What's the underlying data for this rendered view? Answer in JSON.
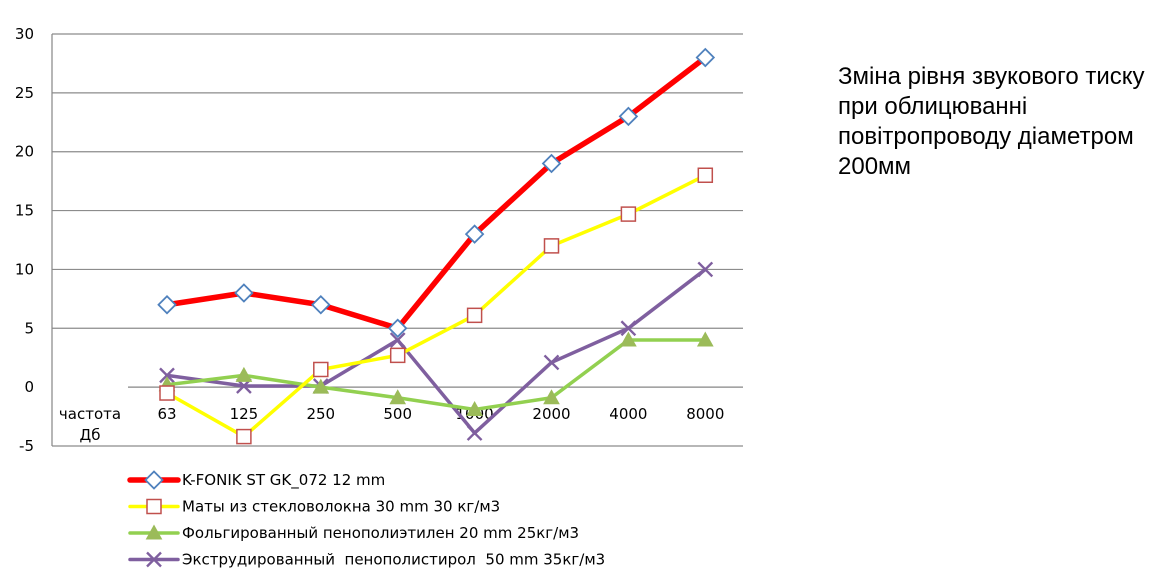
{
  "caption": "Зміна рівня звукового тиску при облицюванні повітропроводу діаметром 200мм",
  "chart_data": {
    "type": "line",
    "xlabel": "частота Дб",
    "categories": [
      "63",
      "125",
      "250",
      "500",
      "1000",
      "2000",
      "4000",
      "8000"
    ],
    "ylim": [
      -5,
      30
    ],
    "yticks": [
      "-5",
      "0",
      "5",
      "10",
      "15",
      "20",
      "25",
      "30"
    ],
    "grid": true,
    "legend_position": "bottom",
    "series": [
      {
        "name": "K-FONIK ST GK_072 12 mm",
        "color": "#ff0000",
        "marker": "diamond",
        "marker_color": "#4f81bd",
        "values": [
          7,
          8,
          7,
          5,
          13,
          19,
          23,
          28
        ]
      },
      {
        "name": "Маты из стекловолокна 30 mm 30 кг/м3",
        "color": "#ffff00",
        "marker": "square",
        "marker_color": "#c0504d",
        "values": [
          -0.5,
          -4.2,
          1.5,
          2.7,
          6.1,
          12,
          14.7,
          18
        ]
      },
      {
        "name": "Фольгированный пенополиэтилен 20 mm 25кг/м3",
        "color": "#92d050",
        "marker": "triangle",
        "marker_color": "#9bbb59",
        "values": [
          0.2,
          1,
          0,
          -0.9,
          -1.9,
          -0.9,
          4,
          4
        ]
      },
      {
        "name": "Экструдированный  пенополистирол  50 mm 35кг/м3",
        "color": "#7f5f9f",
        "marker": "x",
        "marker_color": "#7f5f9f",
        "values": [
          1,
          0.1,
          0.1,
          4,
          -3.9,
          2.1,
          5,
          10
        ]
      }
    ]
  }
}
